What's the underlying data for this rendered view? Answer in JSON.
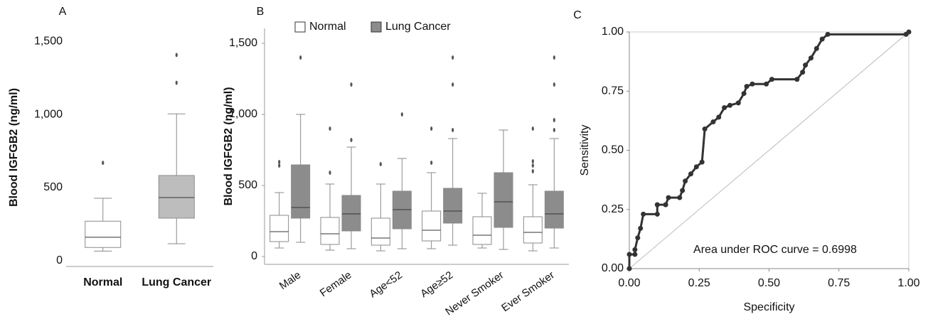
{
  "chart_data": [
    {
      "type": "box",
      "label": "A",
      "ylabel": "Blood  IGFGB2 (ng/ml)",
      "categories": [
        "Normal",
        "Lung Cancer"
      ],
      "boxes": [
        {
          "color": "#ffffff",
          "min": 65,
          "q1": 90,
          "median": 160,
          "q3": 270,
          "max": 427,
          "outliers": [
            670
          ]
        },
        {
          "color": "#bdbdbd",
          "min": 116,
          "q1": 291,
          "median": 432,
          "q3": 583,
          "max": 1005,
          "outliers": [
            1218,
            1408
          ]
        }
      ],
      "ylim": [
        -40,
        1590
      ],
      "yticks": [
        0,
        500,
        {
          "value": 1000,
          "label": "1,000"
        },
        {
          "value": 1500,
          "label": "1,500"
        }
      ]
    },
    {
      "type": "box",
      "label": "B",
      "ylabel": "Blood  IGFGB2 (ng/ml)",
      "categories": [
        "Male",
        "Female",
        "Age<52",
        "Age≥52",
        "Never Smoker",
        "Ever Smoker"
      ],
      "series": [
        {
          "name": "Normal",
          "color": "#ffffff",
          "boxes": [
            {
              "min": 60,
              "q1": 105,
              "median": 175,
              "q3": 290,
              "max": 450,
              "outliers": [
                640,
                665
              ]
            },
            {
              "min": 45,
              "q1": 85,
              "median": 160,
              "q3": 275,
              "max": 510,
              "outliers": [
                590,
                900
              ]
            },
            {
              "min": 40,
              "q1": 80,
              "median": 130,
              "q3": 270,
              "max": 510,
              "outliers": [
                650
              ]
            },
            {
              "min": 55,
              "q1": 110,
              "median": 185,
              "q3": 320,
              "max": 590,
              "outliers": [
                660,
                900
              ]
            },
            {
              "min": 60,
              "q1": 85,
              "median": 150,
              "q3": 280,
              "max": 445,
              "outliers": []
            },
            {
              "min": 40,
              "q1": 95,
              "median": 170,
              "q3": 280,
              "max": 505,
              "outliers": [
                600,
                640,
                670,
                900
              ]
            }
          ]
        },
        {
          "name": "Lung Cancer",
          "color": "#8c8c8c",
          "boxes": [
            {
              "min": 100,
              "q1": 270,
              "median": 345,
              "q3": 645,
              "max": 1000,
              "outliers": [
                1400
              ]
            },
            {
              "min": 55,
              "q1": 180,
              "median": 300,
              "q3": 430,
              "max": 770,
              "outliers": [
                820,
                1210
              ]
            },
            {
              "min": 55,
              "q1": 195,
              "median": 330,
              "q3": 460,
              "max": 690,
              "outliers": [
                1000
              ]
            },
            {
              "min": 80,
              "q1": 235,
              "median": 320,
              "q3": 480,
              "max": 830,
              "outliers": [
                890,
                1210,
                1400
              ]
            },
            {
              "min": 50,
              "q1": 205,
              "median": 385,
              "q3": 590,
              "max": 890,
              "outliers": []
            },
            {
              "min": 60,
              "q1": 200,
              "median": 300,
              "q3": 460,
              "max": 830,
              "outliers": [
                890,
                960,
                1210,
                1400
              ]
            }
          ]
        }
      ],
      "ylim": [
        -55,
        1605
      ],
      "yticks": [
        0,
        500,
        {
          "value": 1000,
          "label": "1,000"
        },
        {
          "value": 1500,
          "label": "1,500"
        }
      ]
    },
    {
      "type": "line",
      "label": "C",
      "xlabel": "Specificity",
      "ylabel": "Sensitivity",
      "annotation": "Area under ROC curve = 0.6998",
      "color": "#333333",
      "x": [
        0,
        0,
        0.02,
        0.02,
        0.03,
        0.04,
        0.05,
        0.1,
        0.1,
        0.13,
        0.14,
        0.18,
        0.19,
        0.2,
        0.22,
        0.24,
        0.26,
        0.27,
        0.3,
        0.32,
        0.34,
        0.36,
        0.39,
        0.41,
        0.42,
        0.44,
        0.49,
        0.51,
        0.6,
        0.62,
        0.63,
        0.65,
        0.67,
        0.69,
        0.71,
        0.99,
        1
      ],
      "values": [
        0,
        0.06,
        0.06,
        0.08,
        0.13,
        0.17,
        0.23,
        0.23,
        0.27,
        0.27,
        0.3,
        0.3,
        0.33,
        0.37,
        0.4,
        0.43,
        0.45,
        0.59,
        0.62,
        0.64,
        0.68,
        0.69,
        0.7,
        0.74,
        0.77,
        0.78,
        0.78,
        0.8,
        0.8,
        0.83,
        0.86,
        0.89,
        0.93,
        0.97,
        0.99,
        0.99,
        1
      ],
      "xlim": [
        0,
        1
      ],
      "ylim": [
        0,
        1
      ],
      "xticks": [
        {
          "value": 0,
          "label": "0.00"
        },
        {
          "value": 0.25,
          "label": "0.25"
        },
        {
          "value": 0.5,
          "label": "0.50"
        },
        {
          "value": 0.75,
          "label": "0.75"
        },
        {
          "value": 1,
          "label": "1.00"
        }
      ],
      "yticks": [
        {
          "value": 0,
          "label": "0.00"
        },
        {
          "value": 0.25,
          "label": "0.25"
        },
        {
          "value": 0.5,
          "label": "0.50"
        },
        {
          "value": 0.75,
          "label": "0.75"
        },
        {
          "value": 1,
          "label": "1.00"
        }
      ]
    }
  ]
}
